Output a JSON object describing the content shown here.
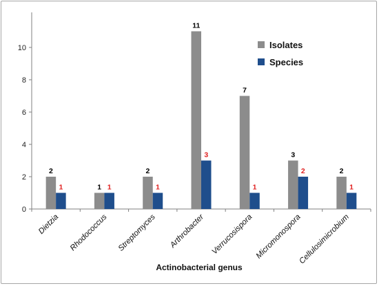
{
  "chart_data": {
    "type": "bar",
    "title": "",
    "xlabel": "Actinobacterial genus",
    "ylabel": "",
    "ylim": [
      0,
      12
    ],
    "yticks": [
      0,
      2,
      4,
      6,
      8,
      10
    ],
    "grid": false,
    "legend_position": "top-right",
    "categories": [
      "Dietzia",
      "Rhodococcus",
      "Streptomyces",
      "Arthrobacter",
      "Verrucosispora",
      "Micromonospora",
      "Cellulosimicrobium"
    ],
    "series": [
      {
        "name": "Isolates",
        "color": "#8c8c8c",
        "label_color": "#000000",
        "values": [
          2,
          1,
          2,
          11,
          7,
          3,
          2
        ]
      },
      {
        "name": "Species",
        "color": "#1f4e8c",
        "label_color": "#e02020",
        "values": [
          1,
          1,
          1,
          3,
          1,
          2,
          1
        ]
      }
    ]
  }
}
